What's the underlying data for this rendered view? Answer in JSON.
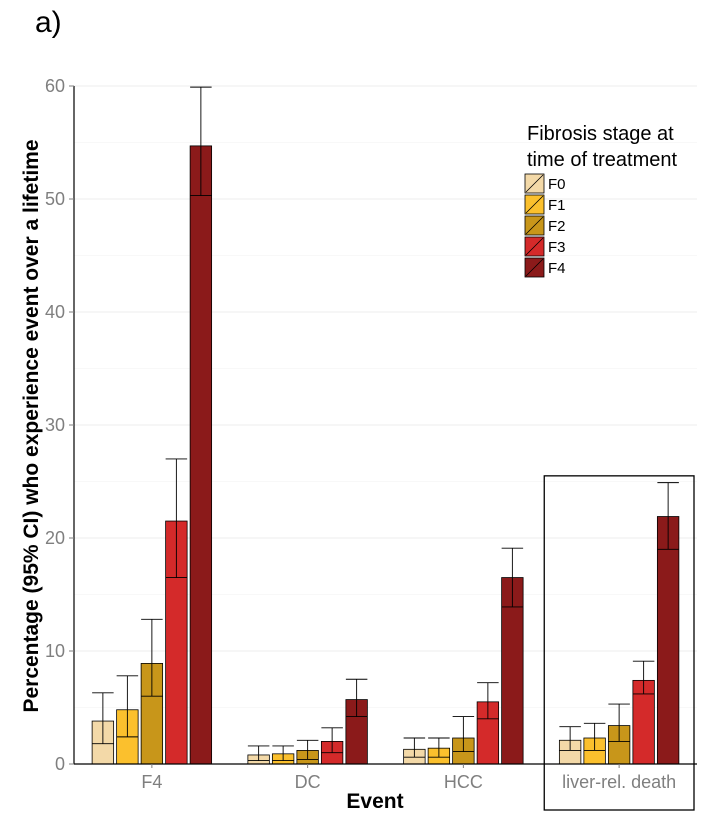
{
  "panel_label": "a)",
  "chart_data": {
    "type": "bar",
    "xlabel": "Event",
    "ylabel": "Percentage (95% CI) who experience event over a lifetime",
    "ylim": [
      0,
      60
    ],
    "yticks": [
      0,
      10,
      20,
      30,
      40,
      50,
      60
    ],
    "grid": true,
    "legend": {
      "title_lines": [
        "Fibrosis stage at",
        "time of treatment"
      ],
      "placement": "top-right"
    },
    "categories": [
      "F4",
      "DC",
      "HCC",
      "liver-rel. death"
    ],
    "highlighted_category": "liver-rel. death",
    "series": [
      {
        "name": "F0",
        "color": "#f3d9a8",
        "values": [
          3.8,
          0.8,
          1.3,
          2.1
        ],
        "ci_low": [
          1.8,
          0.3,
          0.6,
          1.2
        ],
        "ci_high": [
          6.3,
          1.6,
          2.3,
          3.3
        ]
      },
      {
        "name": "F1",
        "color": "#fbc02d",
        "values": [
          4.8,
          0.9,
          1.4,
          2.3
        ],
        "ci_low": [
          2.4,
          0.3,
          0.6,
          1.2
        ],
        "ci_high": [
          7.8,
          1.6,
          2.3,
          3.6
        ]
      },
      {
        "name": "F2",
        "color": "#c8961a",
        "values": [
          8.9,
          1.2,
          2.3,
          3.4
        ],
        "ci_low": [
          6.0,
          0.4,
          1.1,
          2.0
        ],
        "ci_high": [
          12.8,
          2.1,
          4.2,
          5.3
        ]
      },
      {
        "name": "F3",
        "color": "#d42a2a",
        "values": [
          21.5,
          2.0,
          5.5,
          7.4
        ],
        "ci_low": [
          16.5,
          1.0,
          4.0,
          6.2
        ],
        "ci_high": [
          27.0,
          3.2,
          7.2,
          9.1
        ]
      },
      {
        "name": "F4",
        "color": "#8b1a1a",
        "values": [
          54.7,
          5.7,
          16.5,
          21.9
        ],
        "ci_low": [
          50.3,
          4.2,
          13.9,
          19.0
        ],
        "ci_high": [
          59.9,
          7.5,
          19.1,
          24.9
        ]
      }
    ]
  }
}
